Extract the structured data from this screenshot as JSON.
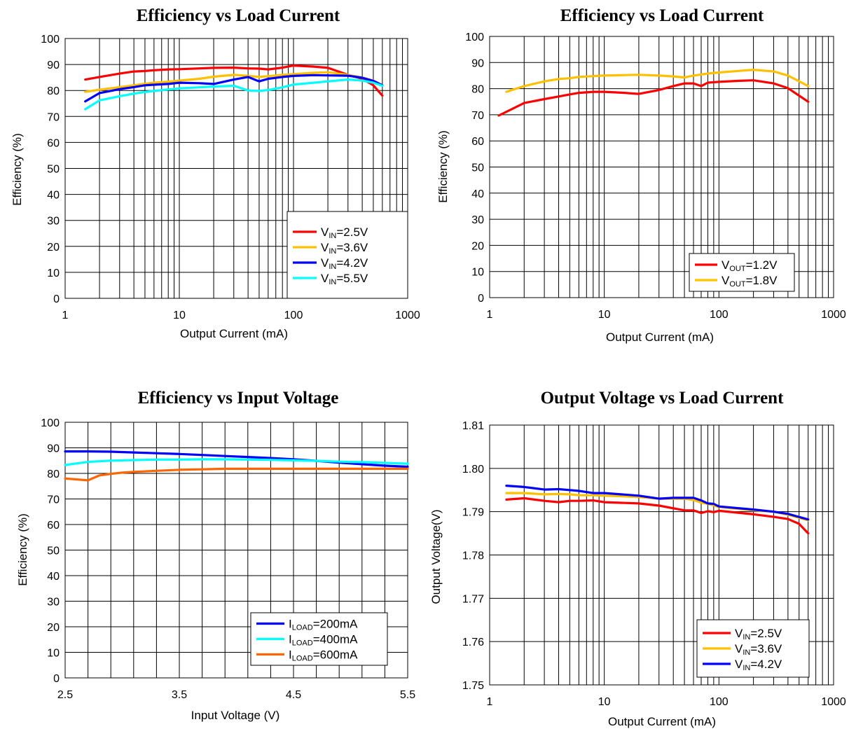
{
  "chart_data": [
    {
      "type": "line",
      "title": "Efficiency vs Load Current",
      "xlabel": "Output Current (mA)",
      "ylabel": "Efficiency (%)",
      "xscale": "log",
      "xlim": [
        1,
        1000
      ],
      "ylim": [
        0,
        100
      ],
      "xticks": [
        "1",
        "10",
        "100",
        "1000"
      ],
      "yticks": [
        "0",
        "10",
        "20",
        "30",
        "40",
        "50",
        "60",
        "70",
        "80",
        "90",
        "100"
      ],
      "grid": true,
      "legend": "bottom-right",
      "series": [
        {
          "name": "V",
          "sub": "IN",
          "suffix": "=2.5V",
          "color": "#ff0000",
          "x": [
            1.5,
            2,
            3,
            4,
            5,
            6,
            8,
            10,
            15,
            20,
            30,
            40,
            50,
            60,
            80,
            100,
            150,
            200,
            300,
            400,
            500,
            600
          ],
          "y": [
            84.2,
            85.2,
            86.5,
            87.3,
            87.5,
            87.8,
            88.1,
            88.2,
            88.5,
            88.7,
            88.8,
            88.5,
            88.4,
            88.1,
            88.8,
            89.6,
            89.2,
            88.7,
            86.0,
            84.5,
            82.0,
            78.0
          ]
        },
        {
          "name": "V",
          "sub": "IN",
          "suffix": "=3.6V",
          "color": "#ffc000",
          "x": [
            1.5,
            2,
            3,
            4,
            5,
            6,
            8,
            10,
            15,
            20,
            30,
            40,
            50,
            60,
            80,
            100,
            150,
            200,
            300,
            400,
            500,
            600
          ],
          "y": [
            79.5,
            80.3,
            81.3,
            82.0,
            82.6,
            83.0,
            83.4,
            83.8,
            84.5,
            85.3,
            86.0,
            85.6,
            85.2,
            85.5,
            86.0,
            86.3,
            86.8,
            87.0,
            86.0,
            85.0,
            83.8,
            82.0
          ]
        },
        {
          "name": "V",
          "sub": "IN",
          "suffix": "=4.2V",
          "color": "#0000ff",
          "x": [
            1.5,
            2,
            3,
            4,
            5,
            6,
            8,
            10,
            15,
            20,
            30,
            40,
            50,
            60,
            80,
            100,
            150,
            200,
            300,
            400,
            500,
            600
          ],
          "y": [
            75.8,
            79.0,
            80.5,
            81.3,
            82.0,
            82.2,
            82.5,
            83.0,
            82.8,
            82.5,
            84.2,
            85.2,
            83.5,
            84.5,
            85.2,
            85.6,
            85.9,
            85.8,
            85.7,
            84.9,
            83.7,
            82.0
          ]
        },
        {
          "name": "V",
          "sub": "IN",
          "suffix": "=5.5V",
          "color": "#00ffff",
          "x": [
            1.5,
            2,
            3,
            4,
            5,
            6,
            8,
            10,
            15,
            20,
            30,
            40,
            50,
            60,
            80,
            100,
            150,
            200,
            300,
            400,
            500,
            600
          ],
          "y": [
            72.8,
            76.2,
            77.8,
            78.8,
            79.4,
            79.8,
            80.4,
            80.8,
            81.2,
            81.5,
            81.8,
            80.0,
            79.8,
            80.2,
            81.2,
            82.3,
            83.0,
            83.5,
            84.2,
            83.8,
            83.0,
            81.8
          ]
        }
      ]
    },
    {
      "type": "line",
      "title": "Efficiency vs Load Current",
      "xlabel": "Output Current (mA)",
      "ylabel": "Efficiency (%)",
      "xscale": "log",
      "xlim": [
        1,
        1000
      ],
      "ylim": [
        0,
        100
      ],
      "xticks": [
        "1",
        "10",
        "100",
        "1000"
      ],
      "yticks": [
        "0",
        "10",
        "20",
        "30",
        "40",
        "50",
        "60",
        "70",
        "80",
        "90",
        "100"
      ],
      "grid": true,
      "legend": "bottom-right",
      "series": [
        {
          "name": "V",
          "sub": "OUT",
          "suffix": "=1.2V",
          "color": "#ff0000",
          "x": [
            1.2,
            2,
            3,
            4,
            5,
            6,
            8,
            10,
            15,
            20,
            30,
            40,
            50,
            60,
            70,
            80,
            100,
            150,
            200,
            300,
            400,
            600
          ],
          "y": [
            69.7,
            74.5,
            76.0,
            77.0,
            77.8,
            78.4,
            78.8,
            78.8,
            78.4,
            78.0,
            79.5,
            81.0,
            82.0,
            82.0,
            81.0,
            82.3,
            82.6,
            83.0,
            83.2,
            82.0,
            80.2,
            75.0
          ]
        },
        {
          "name": "V",
          "sub": "OUT",
          "suffix": "=1.8V",
          "color": "#ffc000",
          "x": [
            1.4,
            2,
            3,
            4,
            5,
            6,
            8,
            10,
            15,
            20,
            30,
            40,
            50,
            60,
            80,
            100,
            150,
            200,
            300,
            400,
            600
          ],
          "y": [
            78.8,
            81.0,
            82.8,
            83.7,
            84.0,
            84.5,
            84.8,
            85.0,
            85.2,
            85.3,
            85.0,
            84.7,
            84.3,
            85.0,
            85.8,
            86.2,
            86.8,
            87.2,
            86.6,
            85.0,
            81.0
          ]
        }
      ]
    },
    {
      "type": "line",
      "title": "Efficiency vs Input Voltage",
      "xlabel": "Input Voltage (V)",
      "ylabel": "Efficiency (%)",
      "xscale": "linear",
      "xlim": [
        2.5,
        5.5
      ],
      "ylim": [
        0,
        100
      ],
      "xticks": [
        "2.5",
        "3.5",
        "4.5",
        "5.5"
      ],
      "yticks": [
        "0",
        "10",
        "20",
        "30",
        "40",
        "50",
        "60",
        "70",
        "80",
        "90",
        "100"
      ],
      "grid": true,
      "legend": "bottom-right",
      "series": [
        {
          "name": "I",
          "sub": "LOAD",
          "suffix": "=200mA",
          "color": "#0000ff",
          "x": [
            2.5,
            2.7,
            2.9,
            3.1,
            3.3,
            3.5,
            3.7,
            3.9,
            4.1,
            4.3,
            4.5,
            4.7,
            4.9,
            5.1,
            5.3,
            5.5
          ],
          "y": [
            88.6,
            88.6,
            88.5,
            88.2,
            87.9,
            87.6,
            87.2,
            86.8,
            86.4,
            86.0,
            85.5,
            84.9,
            84.2,
            83.6,
            83.0,
            82.6
          ]
        },
        {
          "name": "I",
          "sub": "LOAD",
          "suffix": "=400mA",
          "color": "#00ffff",
          "x": [
            2.5,
            2.7,
            2.9,
            3.1,
            3.3,
            3.5,
            3.7,
            3.9,
            4.1,
            4.3,
            4.5,
            4.7,
            4.9,
            5.1,
            5.3,
            5.5
          ],
          "y": [
            83.3,
            84.5,
            85.0,
            85.2,
            85.4,
            85.4,
            85.5,
            85.5,
            85.4,
            85.3,
            85.1,
            84.9,
            84.6,
            84.4,
            84.1,
            83.8
          ]
        },
        {
          "name": "I",
          "sub": "LOAD",
          "suffix": "=600mA",
          "color": "#ff6600",
          "x": [
            2.5,
            2.7,
            2.8,
            2.9,
            3.0,
            3.1,
            3.3,
            3.5,
            3.7,
            3.9,
            4.1,
            4.3,
            4.5,
            4.7,
            4.9,
            5.1,
            5.3,
            5.5
          ],
          "y": [
            78.0,
            77.3,
            79.2,
            79.8,
            80.3,
            80.6,
            81.0,
            81.4,
            81.6,
            81.8,
            81.8,
            81.8,
            81.8,
            81.8,
            81.8,
            81.8,
            81.8,
            81.8
          ]
        }
      ]
    },
    {
      "type": "line",
      "title": "Output Voltage vs Load Current",
      "xlabel": "Output Current (mA)",
      "ylabel": "Output Voltage(V)",
      "xscale": "log",
      "xlim": [
        1,
        1000
      ],
      "ylim": [
        1.75,
        1.81
      ],
      "xticks": [
        "1",
        "10",
        "100",
        "1000"
      ],
      "yticks": [
        "1.75",
        "1.76",
        "1.77",
        "1.78",
        "1.79",
        "1.80",
        "1.81"
      ],
      "grid": true,
      "legend": "bottom-right",
      "series": [
        {
          "name": "V",
          "sub": "IN",
          "suffix": "=2.5V",
          "color": "#ff0000",
          "x": [
            1.4,
            2,
            3,
            4,
            5,
            6,
            8,
            10,
            20,
            30,
            50,
            60,
            70,
            80,
            90,
            100,
            200,
            300,
            400,
            500,
            600
          ],
          "y": [
            1.7928,
            1.7931,
            1.7925,
            1.7922,
            1.7925,
            1.7925,
            1.7926,
            1.7922,
            1.7919,
            1.7914,
            1.7903,
            1.7903,
            1.7897,
            1.7901,
            1.7899,
            1.7902,
            1.7894,
            1.7888,
            1.7883,
            1.7872,
            1.785
          ]
        },
        {
          "name": "V",
          "sub": "IN",
          "suffix": "=3.6V",
          "color": "#ffc000",
          "x": [
            1.4,
            2,
            3,
            4,
            5,
            6,
            8,
            10,
            20,
            30,
            40,
            50,
            60,
            70,
            80,
            100,
            200,
            300,
            400,
            600
          ],
          "y": [
            1.7943,
            1.7943,
            1.794,
            1.7941,
            1.794,
            1.7938,
            1.7938,
            1.7937,
            1.7934,
            1.793,
            1.793,
            1.793,
            1.7927,
            1.7921,
            1.7918,
            1.7911,
            1.7903,
            1.79,
            1.7893,
            1.788
          ]
        },
        {
          "name": "V",
          "sub": "IN",
          "suffix": "=4.2V",
          "color": "#0000ff",
          "x": [
            1.4,
            2,
            3,
            4,
            5,
            6,
            8,
            10,
            20,
            30,
            40,
            50,
            60,
            70,
            80,
            90,
            100,
            200,
            300,
            400,
            600
          ],
          "y": [
            1.796,
            1.7957,
            1.7951,
            1.7952,
            1.795,
            1.7948,
            1.7943,
            1.7943,
            1.7937,
            1.793,
            1.7932,
            1.7932,
            1.7932,
            1.7926,
            1.7919,
            1.7918,
            1.7912,
            1.7905,
            1.79,
            1.7895,
            1.7882
          ]
        }
      ]
    }
  ]
}
